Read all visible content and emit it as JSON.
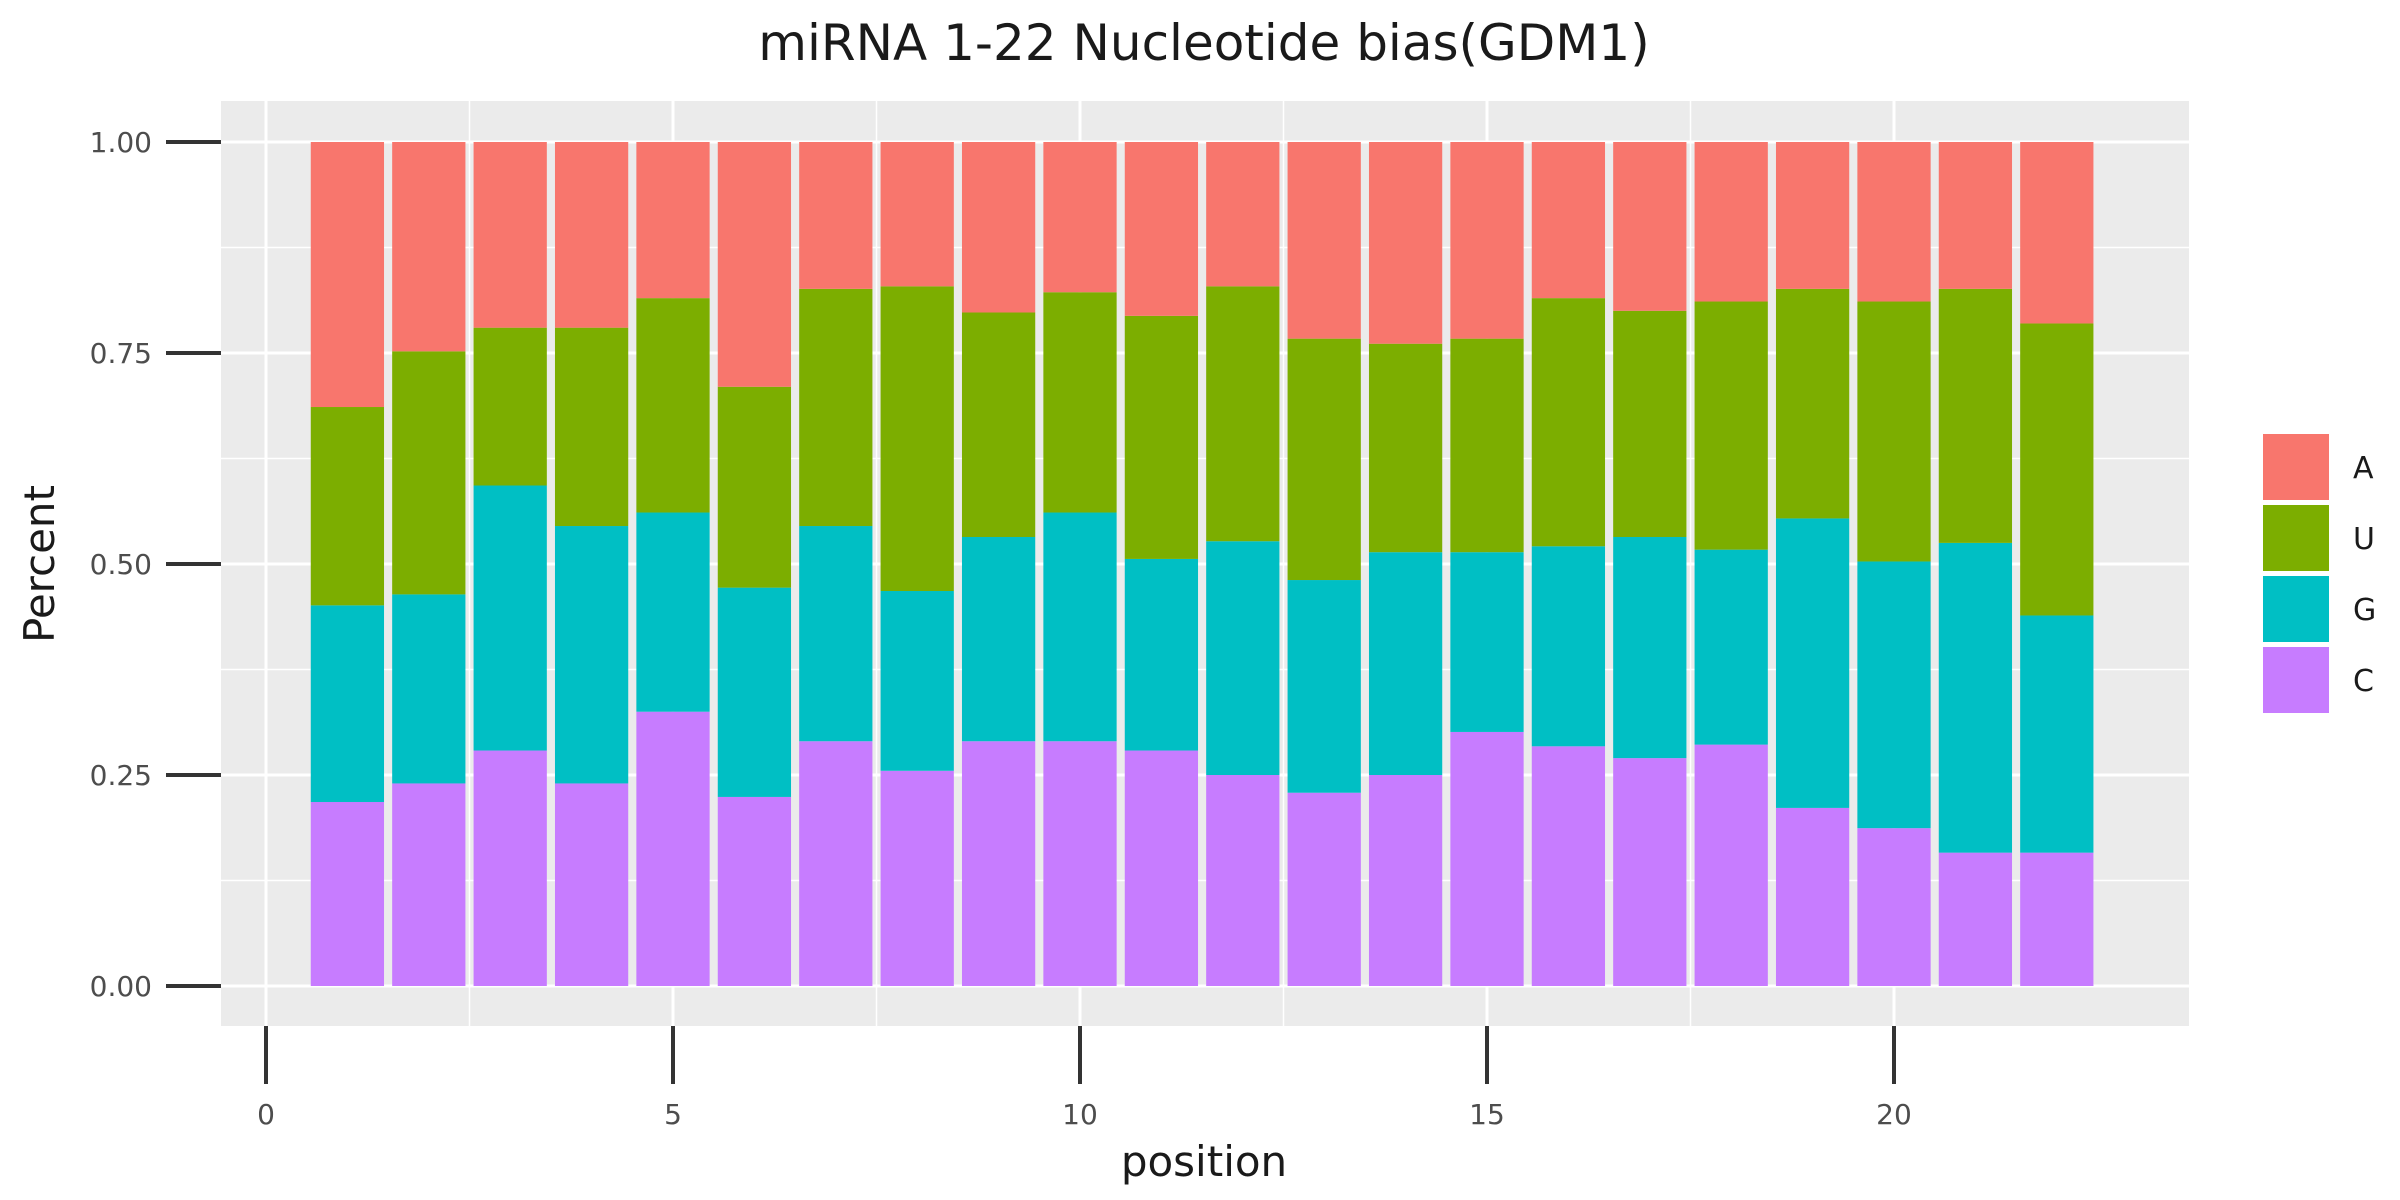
{
  "chart_data": {
    "type": "bar",
    "stacked": true,
    "position": "fill",
    "title": "miRNA 1-22 Nucleotide bias(GDM1)",
    "xlabel": "position",
    "ylabel": "Percent",
    "xlim": [
      0,
      22.5
    ],
    "ylim": [
      0,
      1
    ],
    "xticks": [
      0,
      5,
      10,
      15,
      20
    ],
    "yticks": [
      0,
      0.25,
      0.5,
      0.75,
      1.0
    ],
    "ytick_labels": [
      "0.00",
      "0.25",
      "0.50",
      "0.75",
      "1.00"
    ],
    "grid": true,
    "legend_position": "right",
    "x": [
      1,
      2,
      3,
      4,
      5,
      6,
      7,
      8,
      9,
      10,
      11,
      12,
      13,
      14,
      15,
      16,
      17,
      18,
      19,
      20,
      21,
      22
    ],
    "series": [
      {
        "name": "C",
        "color": "#C77CFF",
        "values": [
          0.218,
          0.24,
          0.279,
          0.24,
          0.325,
          0.224,
          0.29,
          0.255,
          0.29,
          0.29,
          0.279,
          0.25,
          0.229,
          0.25,
          0.301,
          0.284,
          0.27,
          0.286,
          0.211,
          0.187,
          0.158,
          0.158
        ]
      },
      {
        "name": "G",
        "color": "#00BFC4",
        "values": [
          0.233,
          0.224,
          0.314,
          0.305,
          0.236,
          0.248,
          0.255,
          0.213,
          0.242,
          0.271,
          0.227,
          0.277,
          0.252,
          0.264,
          0.213,
          0.237,
          0.262,
          0.231,
          0.343,
          0.316,
          0.367,
          0.281
        ]
      },
      {
        "name": "U",
        "color": "#7CAE00",
        "values": [
          0.235,
          0.288,
          0.187,
          0.235,
          0.254,
          0.238,
          0.281,
          0.361,
          0.266,
          0.261,
          0.288,
          0.302,
          0.286,
          0.247,
          0.253,
          0.294,
          0.268,
          0.294,
          0.272,
          0.308,
          0.301,
          0.346
        ]
      },
      {
        "name": "A",
        "color": "#F8766D",
        "values": [
          0.314,
          0.248,
          0.22,
          0.22,
          0.185,
          0.29,
          0.174,
          0.171,
          0.202,
          0.178,
          0.206,
          0.171,
          0.233,
          0.239,
          0.233,
          0.185,
          0.2,
          0.189,
          0.174,
          0.189,
          0.174,
          0.215
        ]
      }
    ],
    "legend_order": [
      "A",
      "U",
      "G",
      "C"
    ]
  }
}
